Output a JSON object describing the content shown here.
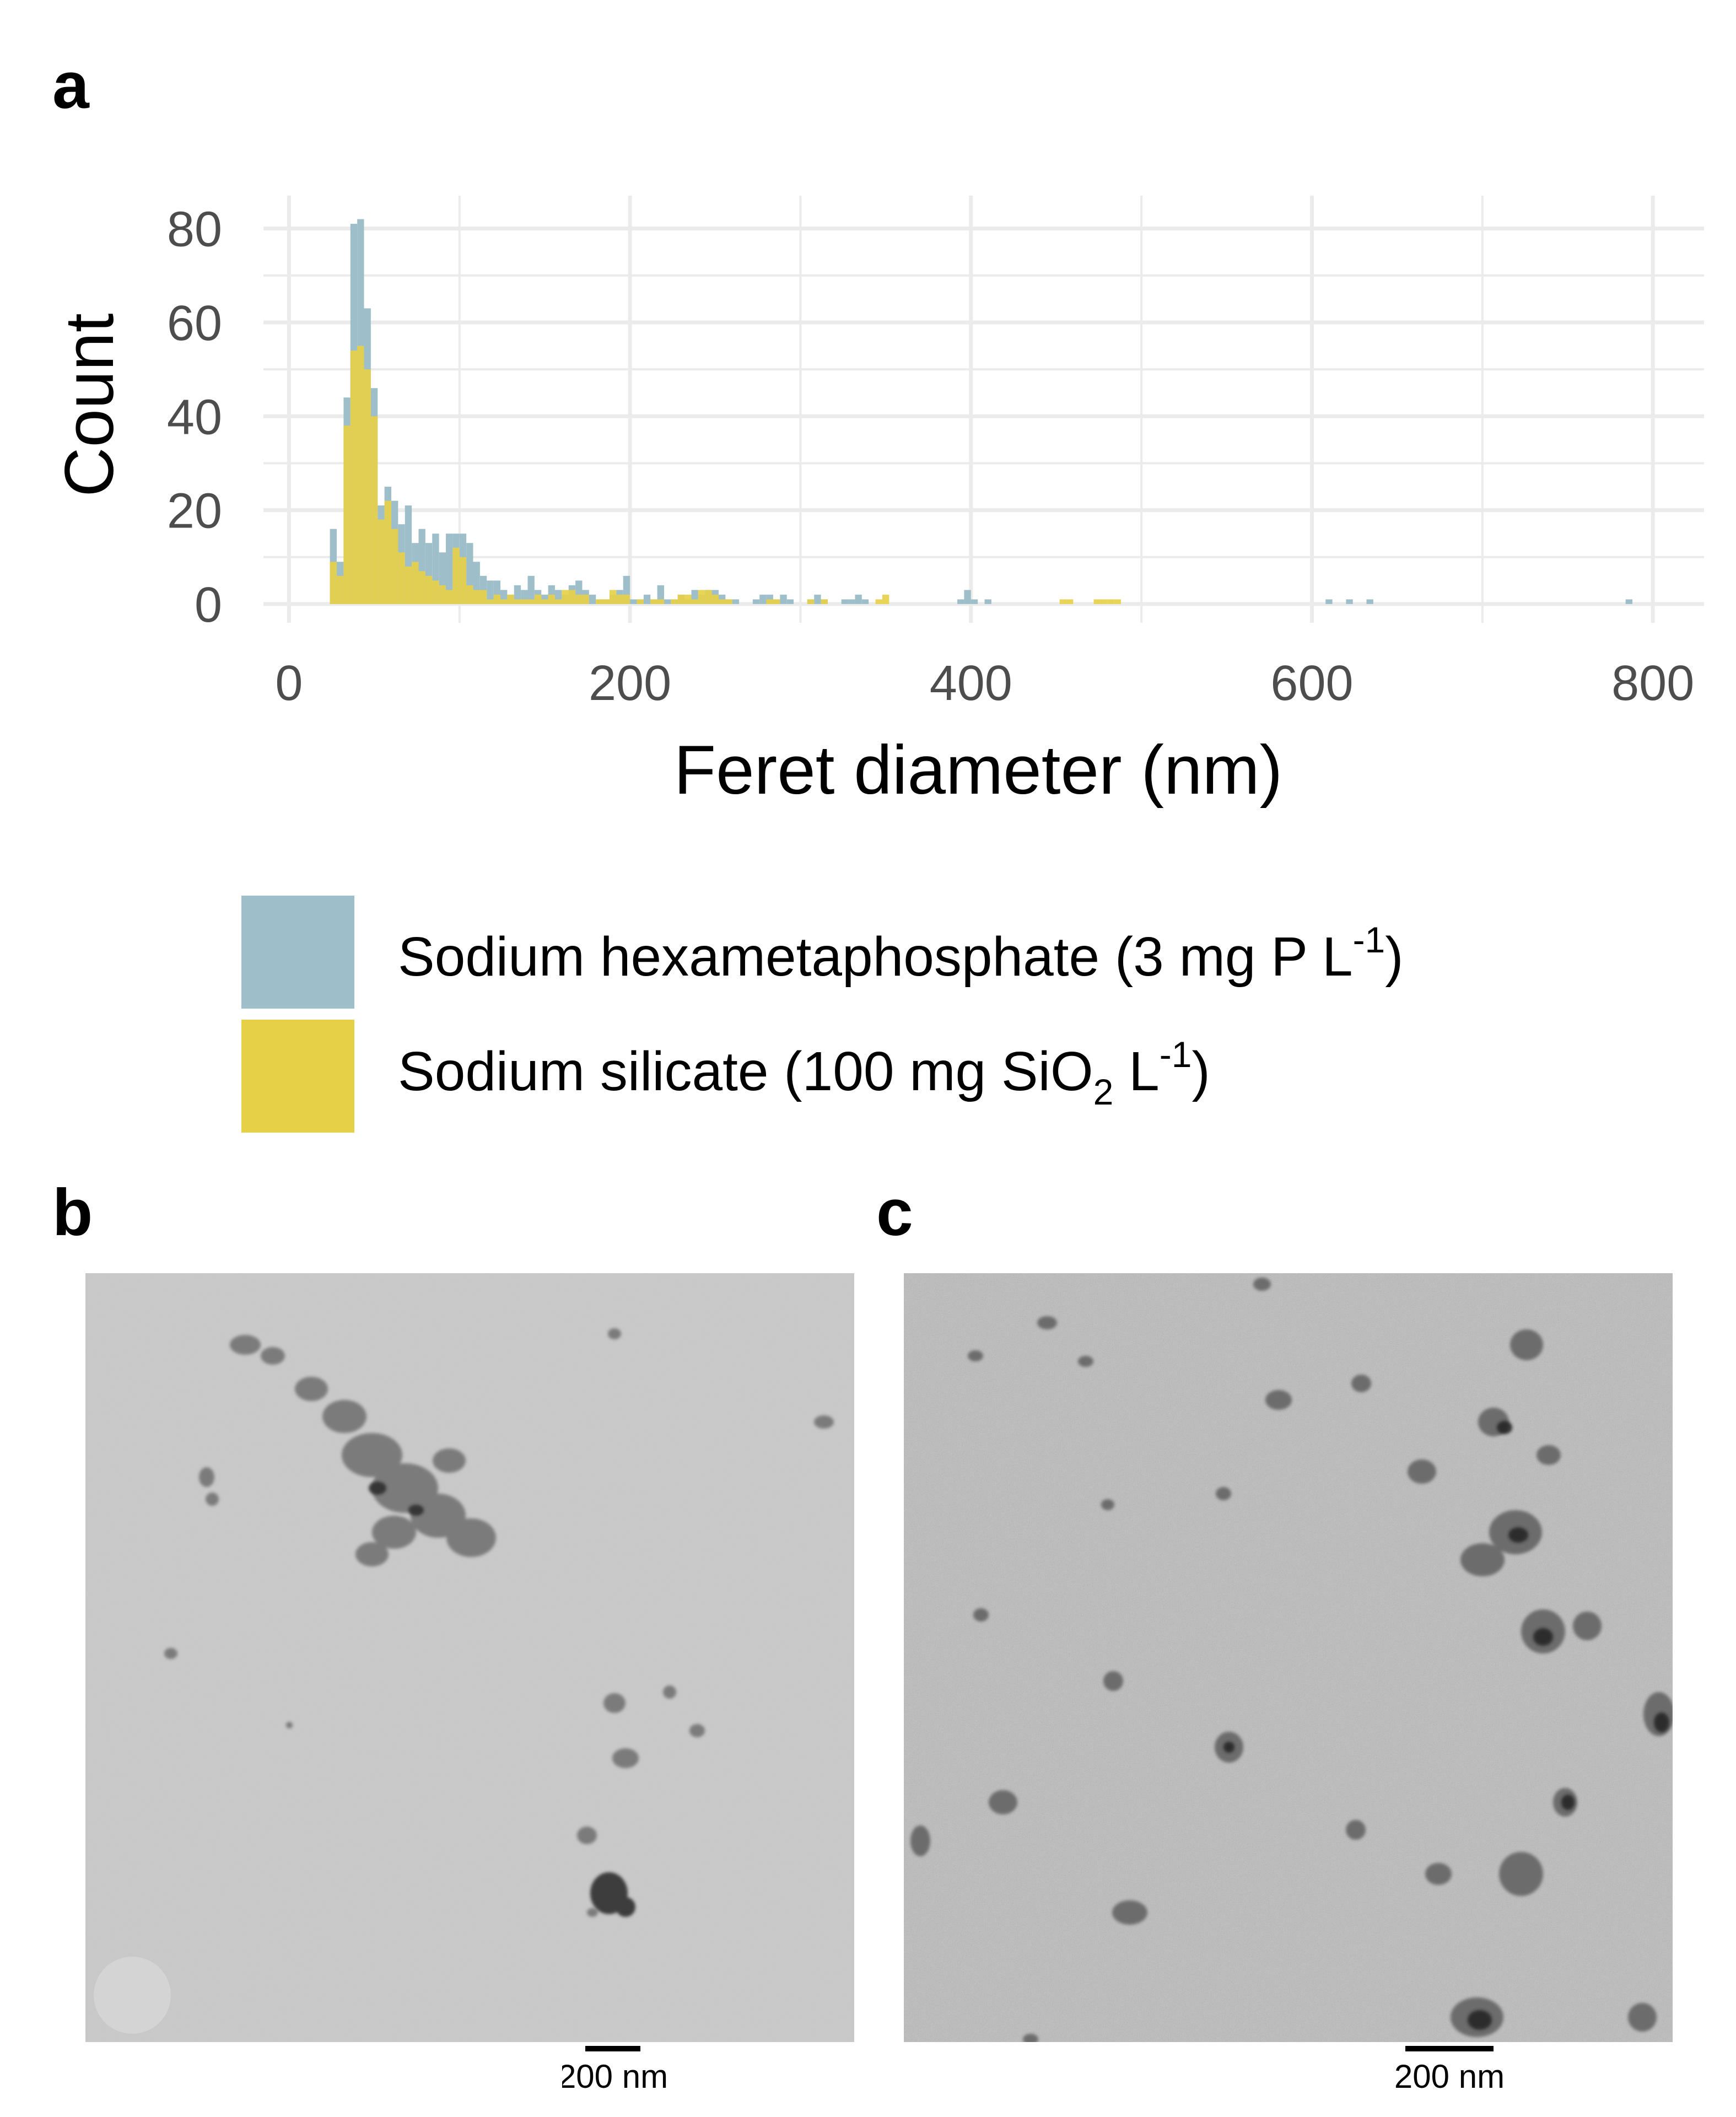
{
  "panels": {
    "a": "a",
    "b": "b",
    "c": "c"
  },
  "colors": {
    "hexametaphosphate": "#9ebfca",
    "silicate": "#e6d048",
    "grid": "#ebebeb",
    "tick_text": "#4d4d4d"
  },
  "chart_data": {
    "type": "bar",
    "subtype": "overlaid-histogram",
    "title": "",
    "xlabel": "Feret diameter (nm)",
    "ylabel": "Count",
    "xlim": [
      -15,
      830
    ],
    "ylim": [
      -4,
      87
    ],
    "x_ticks": [
      0,
      200,
      400,
      600,
      800
    ],
    "y_ticks": [
      0,
      20,
      40,
      60,
      80
    ],
    "grid": true,
    "legend_position": "bottom",
    "bin_width": 4,
    "series": [
      {
        "name": "Sodium hexametaphosphate (3 mg P L-1)",
        "legend": {
          "main": "Sodium hexametaphosphate (3 mg P L",
          "sup": "-1",
          "tail": ")"
        },
        "bins": [
          [
            24,
            16
          ],
          [
            28,
            9
          ],
          [
            32,
            44
          ],
          [
            36,
            81
          ],
          [
            40,
            82
          ],
          [
            44,
            63
          ],
          [
            48,
            46
          ],
          [
            52,
            21
          ],
          [
            56,
            25
          ],
          [
            60,
            22
          ],
          [
            64,
            17
          ],
          [
            68,
            21
          ],
          [
            72,
            13
          ],
          [
            76,
            16
          ],
          [
            80,
            13
          ],
          [
            84,
            15
          ],
          [
            88,
            11
          ],
          [
            92,
            15
          ],
          [
            96,
            15
          ],
          [
            100,
            15
          ],
          [
            104,
            13
          ],
          [
            108,
            9
          ],
          [
            112,
            6
          ],
          [
            116,
            5
          ],
          [
            120,
            5
          ],
          [
            124,
            3
          ],
          [
            128,
            2
          ],
          [
            132,
            4
          ],
          [
            136,
            3
          ],
          [
            140,
            6
          ],
          [
            144,
            3
          ],
          [
            148,
            2
          ],
          [
            152,
            4
          ],
          [
            156,
            3
          ],
          [
            160,
            2
          ],
          [
            164,
            4
          ],
          [
            168,
            5
          ],
          [
            172,
            3
          ],
          [
            176,
            2
          ],
          [
            180,
            1
          ],
          [
            184,
            1
          ],
          [
            188,
            2
          ],
          [
            192,
            3
          ],
          [
            196,
            6
          ],
          [
            200,
            1
          ],
          [
            204,
            1
          ],
          [
            208,
            2
          ],
          [
            212,
            1
          ],
          [
            216,
            4
          ],
          [
            220,
            1
          ],
          [
            224,
            1
          ],
          [
            228,
            2
          ],
          [
            232,
            1
          ],
          [
            236,
            3
          ],
          [
            240,
            2
          ],
          [
            244,
            3
          ],
          [
            248,
            3
          ],
          [
            252,
            2
          ],
          [
            256,
            1
          ],
          [
            260,
            1
          ],
          [
            272,
            1
          ],
          [
            276,
            2
          ],
          [
            280,
            2
          ],
          [
            284,
            1
          ],
          [
            288,
            2
          ],
          [
            292,
            1
          ],
          [
            304,
            1
          ],
          [
            308,
            2
          ],
          [
            312,
            1
          ],
          [
            324,
            1
          ],
          [
            328,
            1
          ],
          [
            332,
            2
          ],
          [
            336,
            1
          ],
          [
            392,
            1
          ],
          [
            396,
            3
          ],
          [
            400,
            1
          ],
          [
            408,
            1
          ],
          [
            608,
            1
          ],
          [
            620,
            1
          ],
          [
            632,
            1
          ],
          [
            784,
            1
          ]
        ]
      },
      {
        "name": "Sodium silicate (100 mg SiO2 L-1)",
        "legend": {
          "main": "Sodium silicate (100 mg SiO",
          "sub": "2",
          "mid": " L",
          "sup": "-1",
          "tail": ")"
        },
        "bins": [
          [
            24,
            9
          ],
          [
            28,
            6
          ],
          [
            32,
            38
          ],
          [
            36,
            54
          ],
          [
            40,
            55
          ],
          [
            44,
            50
          ],
          [
            48,
            40
          ],
          [
            52,
            18
          ],
          [
            56,
            22
          ],
          [
            60,
            16
          ],
          [
            64,
            11
          ],
          [
            68,
            8
          ],
          [
            72,
            9
          ],
          [
            76,
            7
          ],
          [
            80,
            6
          ],
          [
            84,
            5
          ],
          [
            88,
            4
          ],
          [
            92,
            3
          ],
          [
            96,
            12
          ],
          [
            100,
            10
          ],
          [
            104,
            4
          ],
          [
            108,
            3
          ],
          [
            112,
            3
          ],
          [
            116,
            1
          ],
          [
            120,
            2
          ],
          [
            124,
            1
          ],
          [
            128,
            2
          ],
          [
            132,
            1
          ],
          [
            136,
            1
          ],
          [
            140,
            1
          ],
          [
            144,
            2
          ],
          [
            148,
            1
          ],
          [
            152,
            2
          ],
          [
            156,
            1
          ],
          [
            160,
            3
          ],
          [
            164,
            3
          ],
          [
            168,
            2
          ],
          [
            172,
            2
          ],
          [
            180,
            1
          ],
          [
            184,
            1
          ],
          [
            188,
            3
          ],
          [
            192,
            2
          ],
          [
            196,
            2
          ],
          [
            204,
            1
          ],
          [
            212,
            1
          ],
          [
            216,
            1
          ],
          [
            224,
            1
          ],
          [
            228,
            2
          ],
          [
            232,
            2
          ],
          [
            236,
            1
          ],
          [
            240,
            3
          ],
          [
            244,
            3
          ],
          [
            248,
            2
          ],
          [
            252,
            1
          ],
          [
            256,
            1
          ],
          [
            280,
            1
          ],
          [
            284,
            1
          ],
          [
            304,
            1
          ],
          [
            312,
            1
          ],
          [
            344,
            1
          ],
          [
            348,
            2
          ],
          [
            452,
            1
          ],
          [
            456,
            1
          ],
          [
            472,
            1
          ],
          [
            476,
            1
          ],
          [
            480,
            1
          ],
          [
            484,
            1
          ]
        ]
      }
    ]
  },
  "micrographs": [
    {
      "panel": "b",
      "scale_bar_label": "200 nm"
    },
    {
      "panel": "c",
      "scale_bar_label": "200 nm"
    }
  ]
}
